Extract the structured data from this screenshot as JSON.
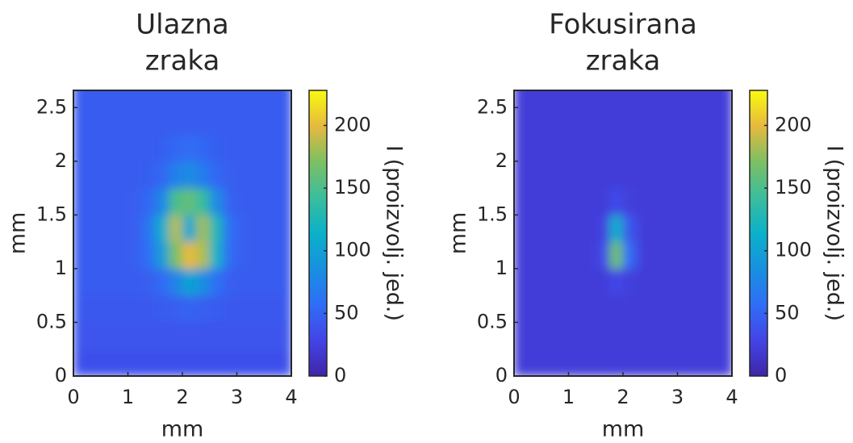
{
  "chart_data": [
    {
      "type": "heatmap",
      "title": [
        "Ulazna",
        "zraka"
      ],
      "xlabel": "mm",
      "ylabel": "mm",
      "xlim": [
        0,
        4
      ],
      "ylim": [
        0,
        2.66
      ],
      "xticks": [
        0,
        1,
        2,
        3,
        4
      ],
      "yticks": [
        0,
        0.5,
        1,
        1.5,
        2,
        2.5
      ],
      "x": [
        0.125,
        0.375,
        0.625,
        0.875,
        1.125,
        1.375,
        1.625,
        1.875,
        2.125,
        2.375,
        2.625,
        2.875,
        3.125,
        3.375,
        3.625,
        3.875
      ],
      "y": [
        0.125,
        0.375,
        0.625,
        0.875,
        1.125,
        1.375,
        1.625,
        1.875,
        2.125,
        2.375,
        2.625
      ],
      "z": [
        [
          36,
          36,
          36,
          36,
          36,
          36,
          36,
          36,
          36,
          36,
          36,
          36,
          36,
          36,
          36,
          36
        ],
        [
          40,
          40,
          40,
          40,
          40,
          40,
          40,
          40,
          40,
          40,
          40,
          40,
          40,
          40,
          40,
          40
        ],
        [
          42,
          42,
          42,
          42,
          42,
          42,
          44,
          46,
          50,
          46,
          44,
          42,
          42,
          42,
          42,
          42
        ],
        [
          44,
          44,
          44,
          44,
          44,
          46,
          55,
          75,
          100,
          85,
          58,
          46,
          44,
          44,
          44,
          44
        ],
        [
          45,
          45,
          45,
          45,
          46,
          58,
          95,
          170,
          200,
          185,
          115,
          55,
          46,
          45,
          45,
          45
        ],
        [
          45,
          45,
          45,
          45,
          46,
          62,
          110,
          185,
          105,
          180,
          125,
          58,
          46,
          45,
          45,
          45
        ],
        [
          45,
          45,
          45,
          45,
          46,
          52,
          78,
          150,
          160,
          140,
          82,
          50,
          45,
          45,
          45,
          45
        ],
        [
          45,
          45,
          45,
          45,
          45,
          47,
          52,
          72,
          82,
          68,
          52,
          46,
          45,
          45,
          45,
          45
        ],
        [
          45,
          45,
          45,
          45,
          45,
          45,
          47,
          52,
          56,
          52,
          47,
          45,
          45,
          45,
          45,
          45
        ],
        [
          45,
          45,
          45,
          45,
          45,
          45,
          45,
          45,
          45,
          45,
          45,
          45,
          45,
          45,
          45,
          45
        ],
        [
          44,
          44,
          44,
          44,
          44,
          44,
          44,
          44,
          44,
          44,
          44,
          44,
          44,
          44,
          44,
          44
        ]
      ],
      "colorbar": {
        "label": "I (proizvolj. jed.)",
        "lim": [
          0,
          228
        ],
        "ticks": [
          0,
          50,
          100,
          150,
          200
        ]
      },
      "colormap": [
        "#3e26a8",
        "#4444e6",
        "#2f6ef6",
        "#1890e0",
        "#0bb1c9",
        "#3bbd9b",
        "#7cc063",
        "#e7b93e",
        "#f9fb0e"
      ]
    },
    {
      "type": "heatmap",
      "title": [
        "Fokusirana",
        "zraka"
      ],
      "xlabel": "mm",
      "ylabel": "mm",
      "xlim": [
        0,
        4
      ],
      "ylim": [
        0,
        2.66
      ],
      "xticks": [
        0,
        1,
        2,
        3,
        4
      ],
      "yticks": [
        0,
        0.5,
        1,
        1.5,
        2,
        2.5
      ],
      "x": [
        0.125,
        0.375,
        0.625,
        0.875,
        1.125,
        1.375,
        1.625,
        1.875,
        2.125,
        2.375,
        2.625,
        2.875,
        3.125,
        3.375,
        3.625,
        3.875
      ],
      "y": [
        0.125,
        0.375,
        0.625,
        0.875,
        1.125,
        1.375,
        1.625,
        1.875,
        2.125,
        2.375,
        2.625
      ],
      "z": [
        [
          22,
          22,
          22,
          22,
          22,
          22,
          22,
          22,
          22,
          22,
          22,
          22,
          22,
          22,
          22,
          22
        ],
        [
          22,
          22,
          22,
          22,
          22,
          22,
          22,
          22,
          22,
          22,
          22,
          22,
          22,
          22,
          22,
          22
        ],
        [
          22,
          22,
          22,
          22,
          22,
          22,
          22,
          22,
          22,
          22,
          22,
          22,
          22,
          22,
          22,
          22
        ],
        [
          22,
          22,
          22,
          22,
          22,
          22,
          22,
          30,
          24,
          22,
          22,
          22,
          22,
          22,
          22,
          22
        ],
        [
          22,
          22,
          22,
          22,
          22,
          22,
          30,
          165,
          55,
          22,
          22,
          22,
          22,
          22,
          22,
          22
        ],
        [
          22,
          22,
          22,
          22,
          22,
          22,
          26,
          110,
          40,
          22,
          22,
          22,
          22,
          22,
          22,
          22
        ],
        [
          22,
          22,
          22,
          22,
          22,
          22,
          22,
          32,
          24,
          22,
          22,
          22,
          22,
          22,
          22,
          22
        ],
        [
          22,
          22,
          22,
          22,
          22,
          22,
          22,
          22,
          22,
          22,
          22,
          22,
          22,
          22,
          22,
          22
        ],
        [
          22,
          22,
          22,
          22,
          22,
          22,
          22,
          22,
          22,
          22,
          22,
          22,
          22,
          22,
          22,
          22
        ],
        [
          22,
          22,
          22,
          22,
          22,
          22,
          22,
          22,
          22,
          22,
          22,
          22,
          22,
          22,
          22,
          22
        ],
        [
          22,
          22,
          22,
          22,
          22,
          22,
          22,
          22,
          22,
          22,
          22,
          22,
          22,
          22,
          22,
          22
        ]
      ],
      "colorbar": {
        "label": "I (proizvolj. jed.)",
        "lim": [
          0,
          228
        ],
        "ticks": [
          0,
          50,
          100,
          150,
          200
        ]
      },
      "colormap": [
        "#3e26a8",
        "#4444e6",
        "#2f6ef6",
        "#1890e0",
        "#0bb1c9",
        "#3bbd9b",
        "#7cc063",
        "#e7b93e",
        "#f9fb0e"
      ]
    }
  ]
}
